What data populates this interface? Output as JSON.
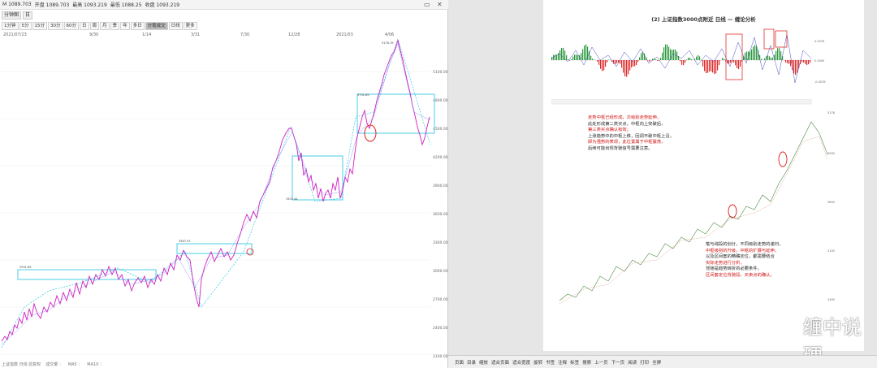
{
  "left_window": {
    "title_items": [
      "M 1089.703",
      "开盘 1089.703",
      "最高 1093.219",
      "最低 1088.25",
      "收盘 1093.219"
    ],
    "close_icon": "close-icon",
    "tabs": [
      "分钟图",
      "日"
    ],
    "toolbar": [
      "1分钟",
      "5分",
      "15分",
      "30分",
      "60分",
      "日",
      "周",
      "月",
      "季",
      "年",
      "多日",
      "分笔成交",
      "日线",
      "更多"
    ],
    "active_tool_index": 11,
    "date_labels": [
      "2021/07/23",
      "9/30",
      "1/14",
      "3/31",
      "7/30",
      "12/28",
      "2021/03",
      "4/06"
    ],
    "bottom_text": [
      "上证指数 日线 前复权",
      "成交量 ：",
      "MA5 ：",
      "MA10 ："
    ],
    "price_labels": [
      "5100.00",
      "4800.00",
      "4500.00",
      "4200.00",
      "3900.00",
      "3600.00",
      "3300.00",
      "3000.00",
      "2700.00",
      "2400.00",
      "2100.00"
    ]
  },
  "right_window": {
    "page_title": "(2) 上证指数3000点附近 日线 — 缠论分析",
    "annotation_1": [
      "走势中枢已经形成，次级别走势延伸，",
      "此处形成第二类买点，中枢向上突破后，",
      "第三类买点确认有效；",
      "上涨趋势中的中枢上移，回调不破中枢上沿，",
      "即为强势的表现，此位置属于中枢震荡，",
      "后续可能出现背驰信号需要注意。"
    ],
    "annotation_2": [
      "笔与线段的划分，不同级别走势的递归，",
      "中枢级别的升级，中枢的扩展与延伸，",
      "以及区间套的精确定位，都需要结合",
      "实际走势进行分析，",
      "背驰是趋势转折的必要条件，",
      "区间套定位背驰段，买卖点的确认。"
    ],
    "footer_items": [
      "页面",
      "目录",
      "缩放",
      "适合页面",
      "适合宽度",
      "旋转",
      "书签",
      "注释",
      "标签",
      "搜索",
      "上一页",
      "下一页",
      "阅读",
      "打印",
      "全屏"
    ],
    "watermark": "缠中说硬"
  }
}
